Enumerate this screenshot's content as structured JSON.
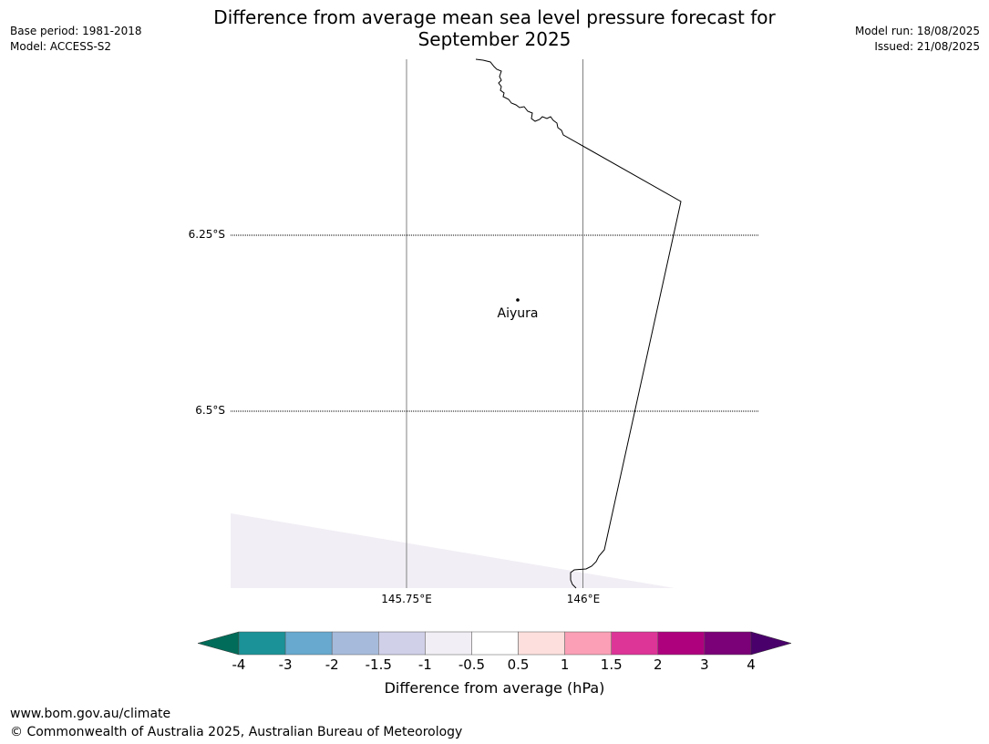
{
  "header": {
    "title_line1": "Difference from average mean sea level pressure forecast for",
    "title_line2": "September 2025",
    "base_period": "Base period: 1981-2018",
    "model": "Model: ACCESS-S2",
    "model_run": "Model run: 18/08/2025",
    "issued": "Issued: 21/08/2025"
  },
  "map": {
    "lat_labels": [
      "6.25°S",
      "6.5°S"
    ],
    "lon_labels": [
      "145.75°E",
      "146°E"
    ],
    "place_name": "Aiyura",
    "shaded_color": "#f2eef5"
  },
  "colorbar": {
    "title": "Difference from average (hPa)",
    "ticks": [
      "-4",
      "-3",
      "-2",
      "-1.5",
      "-1",
      "-0.5",
      "0.5",
      "1",
      "1.5",
      "2",
      "3",
      "4"
    ],
    "colors": [
      "#1a9297",
      "#67a9cf",
      "#a6bbdb",
      "#d0d0e8",
      "#f2eef5",
      "#ffffff",
      "#fde0dd",
      "#fa9fb5",
      "#dd3497",
      "#ae017e",
      "#7a0177"
    ],
    "under_color": "#016c59",
    "over_color": "#49006a"
  },
  "footer": {
    "url": "www.bom.gov.au/climate",
    "copyright": "© Commonwealth of Australia 2025, Australian Bureau of Meteorology"
  }
}
